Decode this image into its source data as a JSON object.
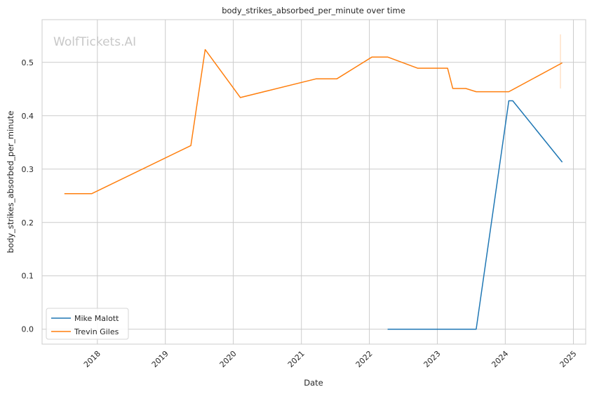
{
  "chart_data": {
    "type": "line",
    "title": "body_strikes_absorbed_per_minute over time",
    "xlabel": "Date",
    "ylabel": "body_strikes_absorbed_per_minute",
    "watermark": "WolfTickets.AI",
    "x_ticks": [
      "2018",
      "2019",
      "2020",
      "2021",
      "2022",
      "2023",
      "2024",
      "2025"
    ],
    "y_ticks": [
      "0.0",
      "0.1",
      "0.2",
      "0.3",
      "0.4",
      "0.5"
    ],
    "xlim": [
      "2017-03-10",
      "2025-03-08"
    ],
    "ylim": [
      -0.028,
      0.58
    ],
    "grid": true,
    "legend_position": "lower-left",
    "series": [
      {
        "name": "Mike Malott",
        "color": "#1f77b4",
        "points": [
          [
            "2022-04-09",
            0.0
          ],
          [
            "2023-07-29",
            0.0
          ],
          [
            "2024-01-20",
            0.428
          ],
          [
            "2024-02-10",
            0.428
          ],
          [
            "2024-11-02",
            0.313
          ]
        ]
      },
      {
        "name": "Trevin Giles",
        "color": "#ff7f0e",
        "points": [
          [
            "2017-07-08",
            0.254
          ],
          [
            "2017-12-02",
            0.254
          ],
          [
            "2019-05-18",
            0.344
          ],
          [
            "2019-08-03",
            0.524
          ],
          [
            "2020-02-08",
            0.434
          ],
          [
            "2021-03-20",
            0.469
          ],
          [
            "2021-07-10",
            0.469
          ],
          [
            "2022-01-15",
            0.51
          ],
          [
            "2022-04-09",
            0.51
          ],
          [
            "2022-09-17",
            0.489
          ],
          [
            "2023-02-25",
            0.489
          ],
          [
            "2023-03-25",
            0.451
          ],
          [
            "2023-06-03",
            0.451
          ],
          [
            "2023-07-29",
            0.445
          ],
          [
            "2024-01-20",
            0.445
          ],
          [
            "2024-11-02",
            0.499
          ]
        ]
      }
    ]
  }
}
